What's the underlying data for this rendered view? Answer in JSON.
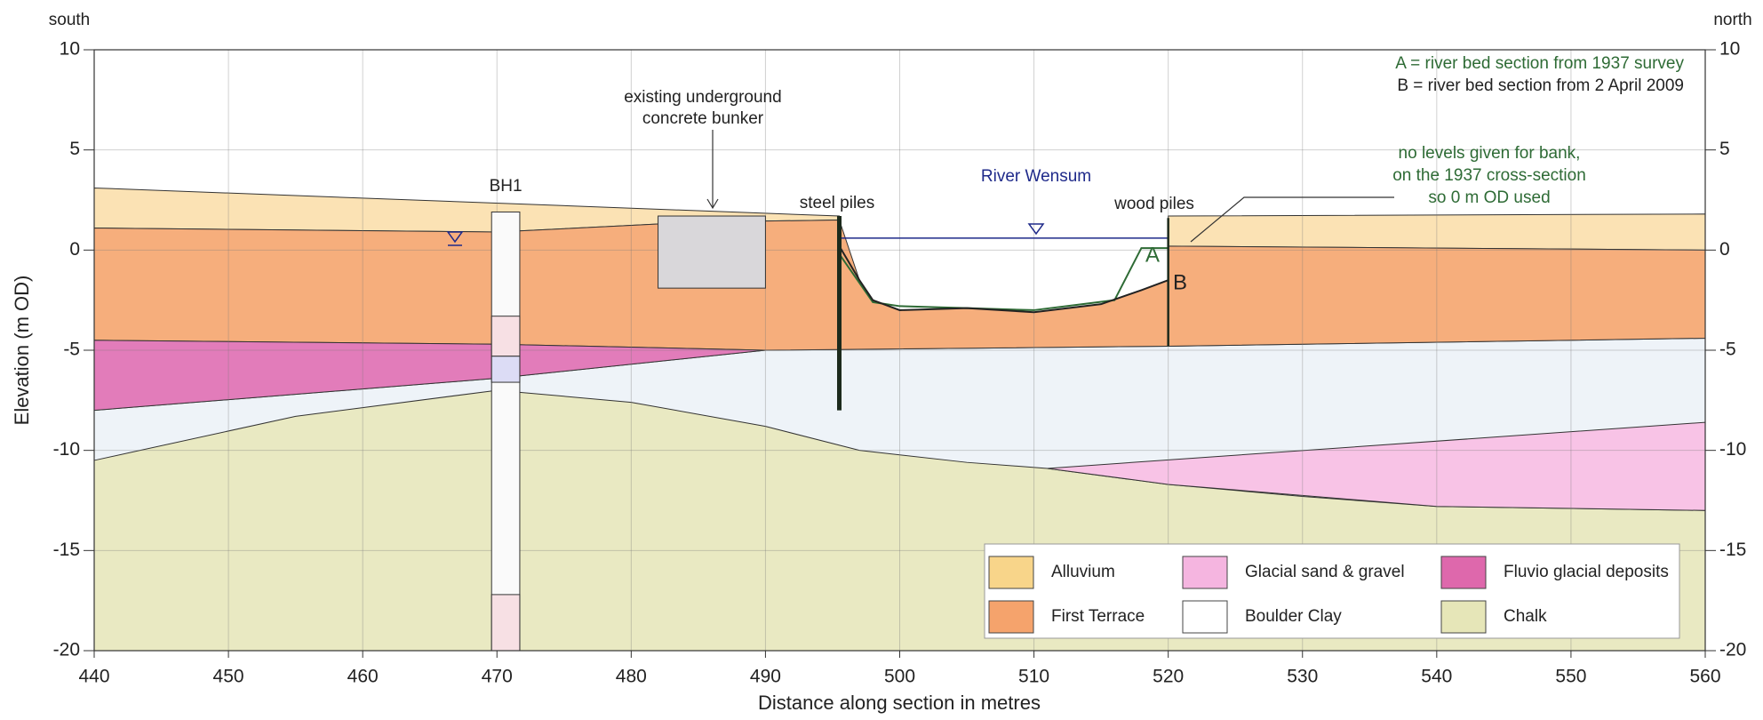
{
  "chart_data": {
    "type": "cross-section",
    "direction_left": "south",
    "direction_right": "north",
    "xlabel": "Distance along section in metres",
    "ylabel": "Elevation (m OD)",
    "xlim": [
      440,
      560
    ],
    "xticks": [
      440,
      450,
      460,
      470,
      480,
      490,
      500,
      510,
      520,
      530,
      540,
      550,
      560
    ],
    "ylim": [
      -20,
      10
    ],
    "yticks": [
      -20,
      -15,
      -10,
      -5,
      0,
      5,
      10
    ],
    "y2lim": [
      -20,
      10
    ],
    "y2ticks": [
      -20,
      -15,
      -10,
      -5,
      0,
      5,
      10
    ],
    "grid": true,
    "legend_position": "lower right",
    "series": [
      {
        "name": "Alluvium",
        "color": "#fbe2b4",
        "legend_color": "#f8d58a",
        "polygons": [
          {
            "x": [
              440,
              495.5,
              495.5,
              485,
              470,
              440
            ],
            "y": [
              3.1,
              1.7,
              1.5,
              1.4,
              0.9,
              1.1
            ]
          },
          {
            "x": [
              520,
              560,
              560,
              520
            ],
            "y": [
              1.7,
              1.8,
              0,
              0.2
            ]
          }
        ]
      },
      {
        "name": "First Terrace",
        "color": "#f6ae7c",
        "legend_color": "#f5a36c",
        "polygons": [
          {
            "x": [
              440,
              470,
              485,
              495.5,
              497,
              498,
              500,
              505,
              510,
              515,
              518,
              520,
              520,
              560,
              560,
              520,
              490,
              470,
              440
            ],
            "y": [
              1.1,
              0.9,
              1.4,
              1.5,
              -1.5,
              -2.5,
              -3,
              -2.9,
              -3.1,
              -2.7,
              -2,
              -1.5,
              0.2,
              0,
              -4.4,
              -4.8,
              -5,
              -4.7,
              -4.5
            ]
          }
        ]
      },
      {
        "name": "Glacial sand & gravel",
        "color": "#f8c3e6",
        "legend_color": "#f5b5e0",
        "polygons": [
          {
            "x": [
              511,
              560,
              560,
              540,
              520
            ],
            "y": [
              -10.9,
              -8.6,
              -13,
              -12.8,
              -11.7
            ]
          }
        ]
      },
      {
        "name": "Boulder Clay",
        "color": "#eef3f8",
        "legend_color": "#ffffff",
        "polygons": [
          {
            "x": [
              440,
              470,
              490,
              520,
              560,
              560,
              440
            ],
            "y": [
              -8,
              -6.4,
              -5,
              -4.8,
              -4.4,
              -13,
              -10.5
            ]
          }
        ]
      },
      {
        "name": "Fluvio glacial deposits",
        "color": "#e27cba",
        "legend_color": "#de68ac",
        "polygons": [
          {
            "x": [
              440,
              470,
              490,
              470,
              440
            ],
            "y": [
              -4.5,
              -4.7,
              -5,
              -6.4,
              -8
            ]
          }
        ]
      },
      {
        "name": "Chalk",
        "color": "#e9e9c2",
        "legend_color": "#e6e6b8",
        "polygons": [
          {
            "x": [
              440,
              455,
              470,
              480,
              490,
              497,
              505,
              511,
              520,
              530,
              540,
              560,
              560,
              440
            ],
            "y": [
              -10.5,
              -8.3,
              -7,
              -7.6,
              -8.8,
              -10,
              -10.6,
              -10.9,
              -11.7,
              -12.3,
              -12.8,
              -13,
              -20,
              -20
            ]
          }
        ]
      }
    ],
    "river_bed_lines": [
      {
        "name": "A",
        "description": "A = river bed section from 1937 survey",
        "color": "#2e6b35",
        "x": [
          495.5,
          498,
          500,
          505,
          510,
          516,
          518,
          520
        ],
        "y": [
          -0.2,
          -2.6,
          -2.8,
          -2.9,
          -3,
          -2.5,
          0.1,
          0.1
        ]
      },
      {
        "name": "B",
        "description": "B = river bed section from 2 April 2009",
        "color": "#222222",
        "x": [
          495.5,
          497,
          498,
          500,
          505,
          510,
          515,
          518,
          520
        ],
        "y": [
          0.2,
          -1.5,
          -2.5,
          -3,
          -2.9,
          -3.1,
          -2.7,
          -2,
          -1.5
        ]
      }
    ],
    "river": {
      "label": "River Wensum",
      "level": 0.6,
      "x": [
        495.5,
        520
      ],
      "color": "#1f2a8a"
    },
    "bunker": {
      "label": [
        "existing underground",
        "concrete bunker"
      ],
      "x": [
        482,
        490
      ],
      "y": [
        1.7,
        -1.9
      ]
    },
    "steel_piles": {
      "label": "steel piles",
      "x": 495.5,
      "y": [
        1.7,
        -8
      ]
    },
    "wood_piles": {
      "label": "wood piles",
      "x": 520,
      "y": [
        1.6,
        -4.8
      ]
    },
    "borehole": {
      "label": "BH1",
      "x": [
        469.6,
        471.7
      ],
      "y": [
        1.9,
        -20
      ]
    },
    "note": [
      "no levels given for bank,",
      "on the 1937 cross-section",
      "so 0 m OD used"
    ]
  }
}
